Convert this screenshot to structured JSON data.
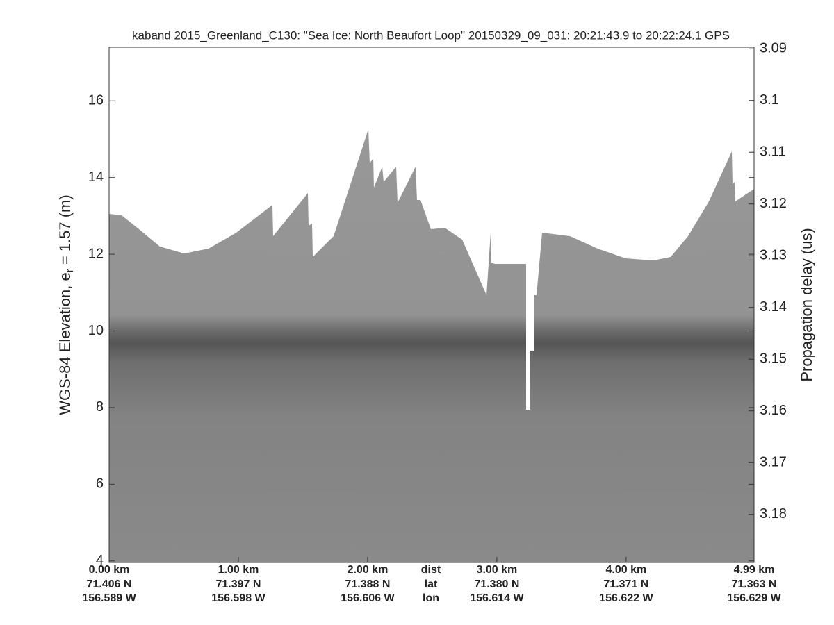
{
  "chart_data": {
    "type": "echogram",
    "title": "kaband 2015_Greenland_C130: \"Sea Ice: North Beaufort Loop\"  20150329_09_031: 20:21:43.9 to 20:22:24.1 GPS",
    "ylabel_parts": [
      "WGS-84 Elevation, e",
      "r",
      " = 1.57 (m)"
    ],
    "y2label": "Propagation delay (us)",
    "xlim": [
      0,
      4.99
    ],
    "xticks": [
      {
        "value": 0,
        "label": "0.00 km"
      },
      {
        "value": 1,
        "label": "1.00 km"
      },
      {
        "value": 2,
        "label": "2.00 km"
      },
      {
        "value": 3,
        "label": "3.00 km"
      },
      {
        "value": 4,
        "label": "4.00 km"
      },
      {
        "value": 4.99,
        "label": "4.99 km"
      }
    ],
    "lat_labels": [
      "71.406 N",
      "71.397 N",
      "71.388 N",
      "71.380 N",
      "71.371 N",
      "71.363 N"
    ],
    "lon_labels": [
      "156.589 W",
      "156.598 W",
      "156.606 W",
      "156.614 W",
      "156.622 W",
      "156.629 W"
    ],
    "row_names": [
      "dist",
      "lat",
      "lon"
    ],
    "ylim": [
      3.96,
      17.4
    ],
    "yticks": [
      4,
      6,
      8,
      10,
      12,
      14,
      16
    ],
    "y2lim": [
      3.1893,
      3.0897
    ],
    "y2ticks": [
      3.09,
      3.1,
      3.11,
      3.12,
      3.13,
      3.14,
      3.15,
      3.16,
      3.17,
      3.18
    ]
  }
}
